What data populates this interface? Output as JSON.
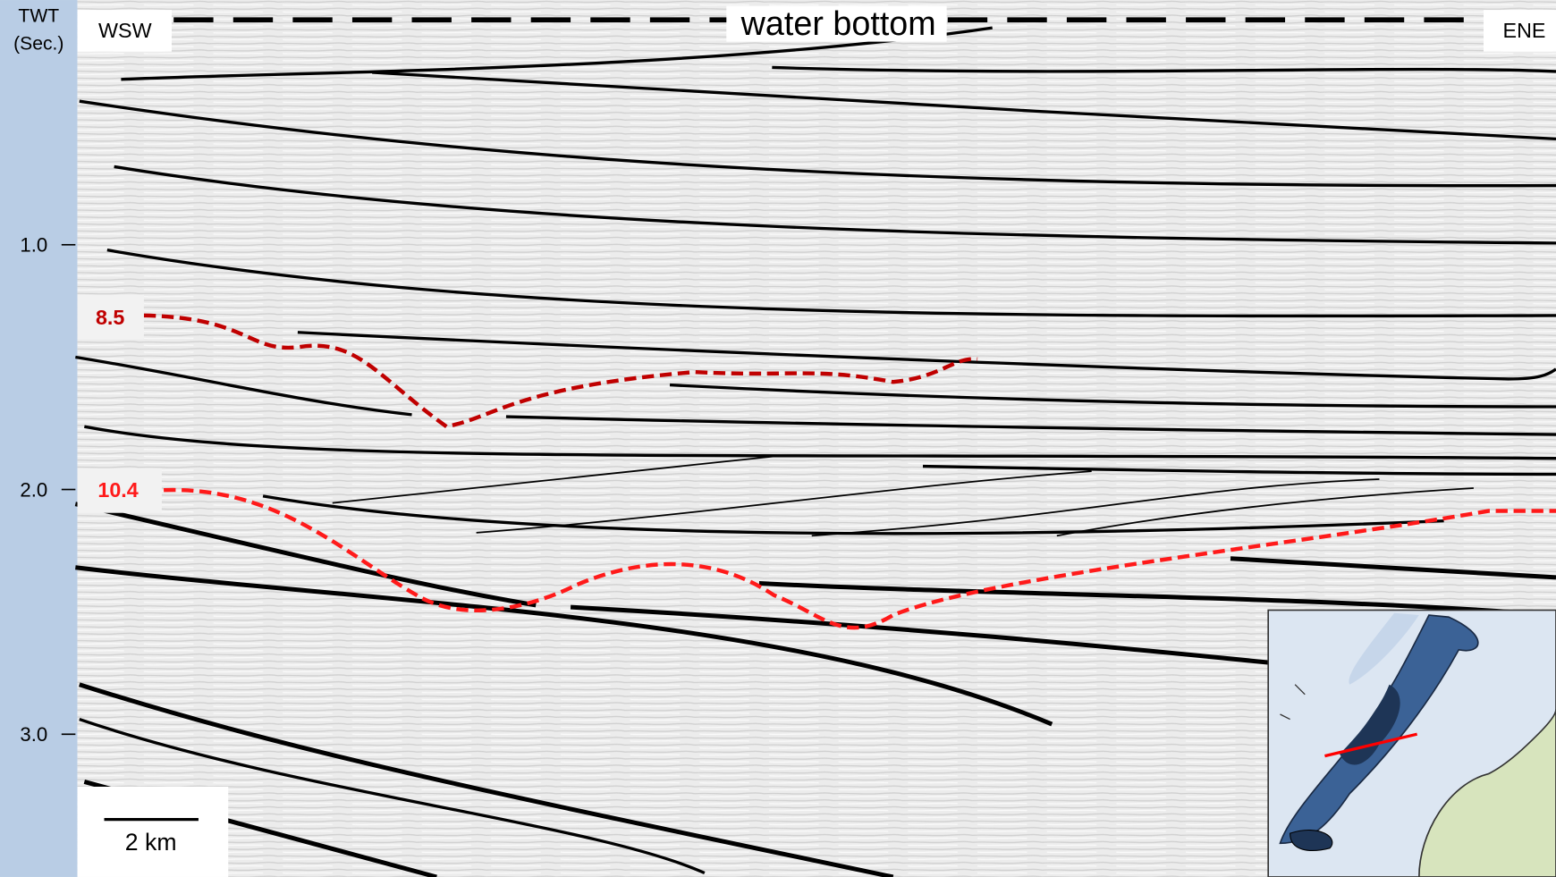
{
  "axis": {
    "title": [
      "TWT",
      "(Sec.)"
    ],
    "ticks": [
      {
        "value": 1,
        "label": "1.0"
      },
      {
        "value": 2,
        "label": "2.0"
      },
      {
        "value": 3,
        "label": "3.0"
      }
    ]
  },
  "section": {
    "left": "WSW",
    "right": "ENE",
    "water_bottom": "water bottom"
  },
  "horizons": [
    {
      "label": "8.5"
    },
    {
      "label": "10.4"
    }
  ],
  "scale_bar": "2 km"
}
